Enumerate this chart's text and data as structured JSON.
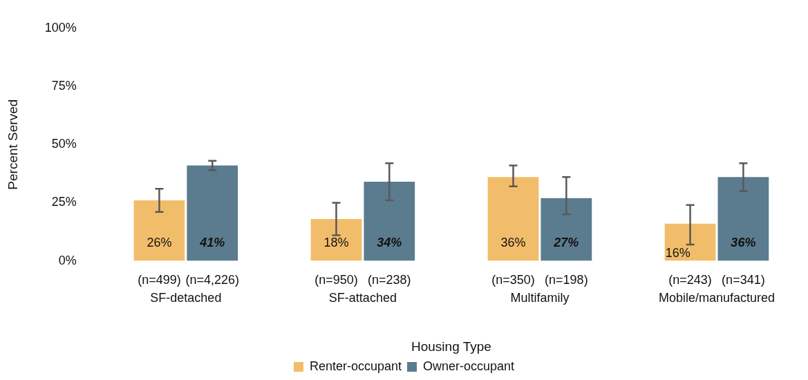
{
  "chart_data": {
    "type": "bar",
    "xlabel": "Housing Type",
    "ylabel": "Percent Served",
    "categories": [
      "SF-detached",
      "SF-attached",
      "Multifamily",
      "Mobile/manufactured"
    ],
    "series": [
      {
        "name": "Renter-occupant",
        "color": "#f2bd6a",
        "values": [
          26,
          18,
          36,
          16
        ],
        "value_labels": [
          "26%",
          "18%",
          "36%",
          "16%"
        ],
        "errors": [
          [
            21,
            31
          ],
          [
            11,
            25
          ],
          [
            32,
            41
          ],
          [
            7,
            24
          ]
        ]
      },
      {
        "name": "Owner-occupant",
        "color": "#5b7b8f",
        "values": [
          41,
          34,
          27,
          36
        ],
        "value_labels": [
          "41%",
          "34%",
          "27%",
          "36%"
        ],
        "errors": [
          [
            39,
            43
          ],
          [
            26,
            42
          ],
          [
            20,
            36
          ],
          [
            30,
            42
          ]
        ]
      }
    ],
    "ylim": [
      0,
      100
    ],
    "yticks": [
      {
        "value": 0,
        "label": "0%"
      },
      {
        "value": 25,
        "label": "25%"
      },
      {
        "value": 50,
        "label": "50%"
      },
      {
        "value": 75,
        "label": "75%"
      },
      {
        "value": 100,
        "label": "100%"
      }
    ],
    "grid": false,
    "legend": "bottom",
    "annotations": [
      "(n=499)",
      "(n=4,226)",
      "(n=950)",
      "(n=238)",
      "(n=350)",
      "(n=198)",
      "(n=243)",
      "(n=341)"
    ]
  }
}
